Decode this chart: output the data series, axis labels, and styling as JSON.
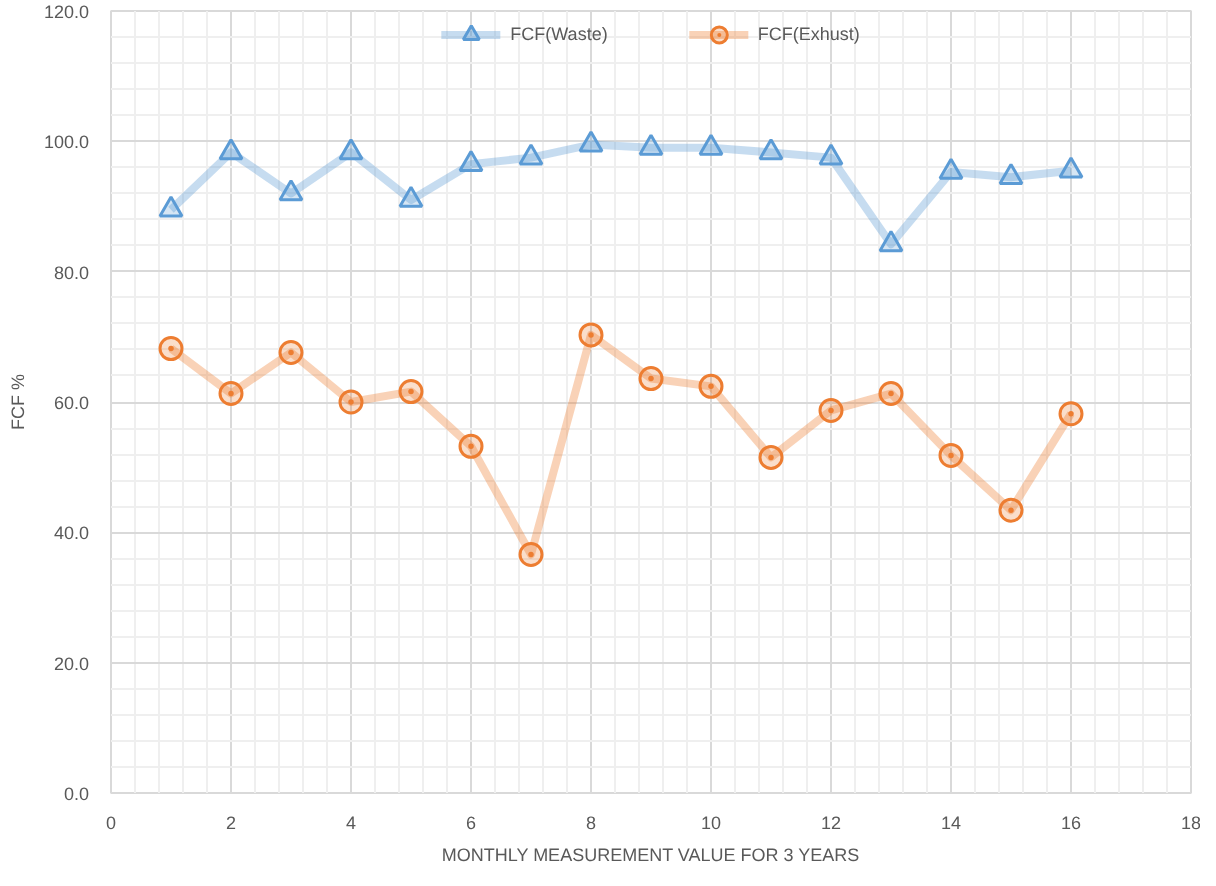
{
  "chart_data": {
    "type": "line",
    "xlabel": "MONTHLY MEASUREMENT VALUE FOR 3 YEARS",
    "ylabel": "FCF %",
    "x": [
      1,
      2,
      3,
      4,
      5,
      6,
      7,
      8,
      9,
      10,
      11,
      12,
      13,
      14,
      15,
      16
    ],
    "series": [
      {
        "name": "FCF(Waste)",
        "color": "#5b9bd5",
        "marker": "triangle",
        "values": [
          89.5,
          98.3,
          92.0,
          98.3,
          91.0,
          96.5,
          97.5,
          99.5,
          99.0,
          99.0,
          98.3,
          97.5,
          84.2,
          95.3,
          94.5,
          95.5
        ]
      },
      {
        "name": "FCF(Exhust)",
        "color": "#ed7d31",
        "marker": "circle",
        "values": [
          68.2,
          61.3,
          67.6,
          60.0,
          61.6,
          53.2,
          36.6,
          70.3,
          63.6,
          62.4,
          51.5,
          58.7,
          61.3,
          51.8,
          43.4,
          58.2
        ]
      }
    ],
    "xlim": [
      0,
      18
    ],
    "xticks": [
      0,
      2,
      4,
      6,
      8,
      10,
      12,
      14,
      16,
      18
    ],
    "ylim": [
      0,
      120
    ],
    "yticks": [
      {
        "value": 0,
        "label": "0.0"
      },
      {
        "value": 20,
        "label": "20.0"
      },
      {
        "value": 40,
        "label": "40.0"
      },
      {
        "value": 60,
        "label": "60.0"
      },
      {
        "value": 80,
        "label": "80.0"
      },
      {
        "value": 100,
        "label": "100.0"
      },
      {
        "value": 120,
        "label": "120.0"
      }
    ],
    "grid": true,
    "legend": "top",
    "line_style": "solid"
  }
}
